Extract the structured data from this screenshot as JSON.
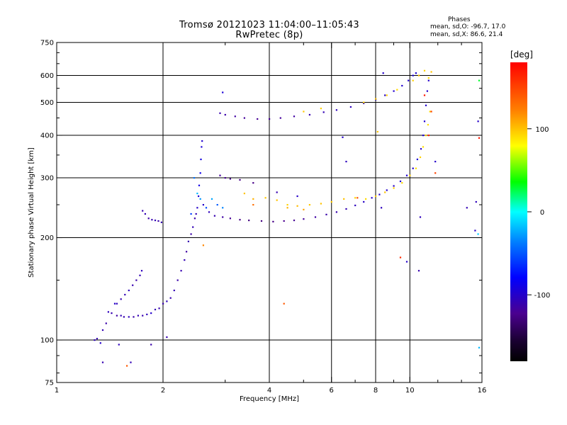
{
  "header": {
    "title_line_1": "Tromsø 20121023 11:04:00–11:05:43",
    "title_line_2": "RwPretec (8p)"
  },
  "phase_stats": {
    "heading": "Phases",
    "stat_o": "mean, sd,O: -96.7, 17.0",
    "stat_x": "mean, sd,X: 86.6, 21.4"
  },
  "colorbar": {
    "unit_label": "[deg]",
    "ticks": [
      {
        "value": 100,
        "label": "100"
      },
      {
        "value": 0,
        "label": "0"
      },
      {
        "value": -100,
        "label": "-100"
      }
    ],
    "range": [
      -180,
      180
    ],
    "colormap": "rainbow"
  },
  "chart_data": {
    "type": "scatter",
    "title": "Tromsø 20121023 11:04:00–11:05:43",
    "subtitle": "RwPretec (8p)",
    "xlabel": "Frequency [MHz]",
    "ylabel": "Stationary phase Virtual Height [km]",
    "xscale": "log",
    "yscale": "log",
    "xlim": [
      1,
      16
    ],
    "ylim": [
      75,
      750
    ],
    "xticks": [
      {
        "value": 1,
        "label": "1"
      },
      {
        "value": 2,
        "label": "2"
      },
      {
        "value": 4,
        "label": "4"
      },
      {
        "value": 6,
        "label": "6"
      },
      {
        "value": 8,
        "label": "8"
      },
      {
        "value": 10,
        "label": "10"
      },
      {
        "value": 16,
        "label": "16"
      }
    ],
    "yticks": [
      {
        "value": 75,
        "label": "75"
      },
      {
        "value": 100,
        "label": "100"
      },
      {
        "value": 200,
        "label": "200"
      },
      {
        "value": 300,
        "label": "300"
      },
      {
        "value": 400,
        "label": "400"
      },
      {
        "value": 500,
        "label": "500"
      },
      {
        "value": 600,
        "label": "600"
      },
      {
        "value": 750,
        "label": "750"
      }
    ],
    "grid_x": [
      2,
      4,
      6,
      8,
      10
    ],
    "grid_y": [
      100,
      200,
      300,
      400,
      500,
      600
    ],
    "minor_x": [
      3,
      5,
      7,
      9,
      12,
      14
    ],
    "minor_y": [
      80,
      90,
      150,
      250,
      350,
      450,
      550,
      650,
      700
    ],
    "grid": true,
    "color_scale": "phase [deg], rainbow, -180 to 180",
    "series": [
      {
        "points": [
          [
            1.28,
            100,
            -105
          ],
          [
            1.3,
            101,
            -110
          ],
          [
            1.33,
            98,
            -100
          ],
          [
            1.35,
            107,
            -108
          ],
          [
            1.38,
            112,
            -112
          ],
          [
            1.4,
            121,
            -105
          ],
          [
            1.43,
            120,
            -110
          ],
          [
            1.46,
            128,
            -100
          ],
          [
            1.48,
            118,
            -115
          ],
          [
            1.52,
            118,
            -108
          ],
          [
            1.55,
            117,
            -110
          ],
          [
            1.6,
            117,
            -105
          ],
          [
            1.65,
            117,
            -112
          ],
          [
            1.7,
            118,
            -108
          ],
          [
            1.75,
            118,
            -110
          ],
          [
            1.8,
            119,
            -105
          ],
          [
            1.85,
            120,
            -100
          ],
          [
            1.9,
            123,
            -108
          ],
          [
            1.95,
            124,
            -110
          ],
          [
            2.0,
            128,
            -112
          ],
          [
            2.05,
            130,
            -105
          ],
          [
            2.1,
            133,
            -110
          ],
          [
            2.15,
            140,
            -108
          ],
          [
            2.2,
            150,
            -112
          ],
          [
            2.25,
            160,
            -110
          ],
          [
            2.3,
            172,
            -108
          ],
          [
            2.33,
            182,
            -115
          ],
          [
            2.36,
            195,
            -110
          ],
          [
            2.4,
            205,
            -112
          ],
          [
            2.43,
            215,
            -108
          ],
          [
            2.46,
            228,
            -112
          ],
          [
            2.48,
            235,
            -110
          ],
          [
            2.5,
            245,
            -100
          ],
          [
            2.52,
            265,
            -95
          ],
          [
            2.53,
            285,
            -90
          ],
          [
            2.55,
            310,
            -88
          ],
          [
            2.56,
            340,
            -92
          ],
          [
            2.57,
            370,
            -95
          ],
          [
            2.58,
            385,
            -98
          ],
          [
            1.48,
            128,
            -105
          ],
          [
            1.52,
            132,
            -110
          ],
          [
            1.56,
            136,
            -108
          ],
          [
            1.6,
            140,
            -105
          ],
          [
            1.64,
            145,
            -110
          ],
          [
            1.68,
            150,
            -112
          ],
          [
            1.72,
            155,
            -108
          ],
          [
            1.74,
            160,
            -105
          ],
          [
            1.75,
            240,
            -110
          ],
          [
            1.78,
            235,
            -108
          ],
          [
            1.82,
            228,
            -112
          ],
          [
            1.86,
            226,
            -110
          ],
          [
            1.9,
            225,
            -108
          ],
          [
            1.94,
            224,
            -112
          ],
          [
            1.98,
            222,
            -110
          ],
          [
            2.6,
            250,
            -100
          ],
          [
            2.7,
            238,
            -105
          ],
          [
            2.8,
            232,
            -110
          ],
          [
            2.95,
            230,
            -115
          ],
          [
            3.1,
            228,
            -120
          ],
          [
            3.3,
            226,
            -125
          ],
          [
            3.5,
            225,
            -128
          ],
          [
            3.8,
            224,
            -128
          ],
          [
            4.1,
            223,
            -125
          ],
          [
            4.4,
            224,
            -122
          ],
          [
            4.7,
            225,
            -120
          ],
          [
            5.0,
            227,
            -118
          ],
          [
            5.4,
            230,
            -115
          ],
          [
            5.8,
            234,
            -112
          ],
          [
            6.2,
            238,
            -110
          ],
          [
            6.6,
            243,
            -108
          ],
          [
            7.0,
            249,
            -105
          ],
          [
            7.4,
            255,
            -102
          ],
          [
            7.8,
            262,
            -100
          ],
          [
            8.2,
            268,
            -100
          ],
          [
            8.6,
            276,
            -100
          ],
          [
            9.0,
            284,
            -100
          ],
          [
            9.4,
            293,
            -98
          ],
          [
            9.8,
            305,
            -98
          ],
          [
            10.2,
            320,
            -98
          ],
          [
            10.5,
            340,
            -98
          ],
          [
            10.75,
            365,
            -100
          ],
          [
            10.9,
            400,
            -100
          ],
          [
            11.0,
            440,
            -98
          ],
          [
            11.1,
            490,
            -98
          ],
          [
            11.2,
            540,
            -100
          ],
          [
            11.3,
            580,
            -100
          ],
          [
            2.9,
            305,
            -118
          ],
          [
            3.0,
            300,
            -120
          ],
          [
            3.1,
            298,
            -122
          ],
          [
            3.3,
            296,
            -125
          ],
          [
            3.6,
            290,
            -125
          ],
          [
            4.2,
            272,
            -110
          ],
          [
            4.8,
            265,
            -100
          ],
          [
            2.9,
            465,
            -110
          ],
          [
            3.0,
            460,
            -112
          ],
          [
            3.2,
            455,
            -115
          ],
          [
            3.4,
            450,
            -118
          ],
          [
            3.7,
            447,
            -120
          ],
          [
            4.0,
            447,
            -120
          ],
          [
            4.3,
            450,
            -118
          ],
          [
            4.7,
            455,
            -115
          ],
          [
            5.2,
            460,
            -110
          ],
          [
            5.7,
            468,
            -108
          ],
          [
            6.2,
            475,
            -105
          ],
          [
            6.8,
            485,
            -105
          ],
          [
            7.4,
            497,
            -102
          ],
          [
            8.0,
            510,
            -100
          ],
          [
            8.5,
            525,
            -100
          ],
          [
            9.0,
            540,
            -98
          ],
          [
            9.5,
            560,
            -98
          ],
          [
            9.9,
            580,
            -98
          ],
          [
            10.2,
            600,
            -95
          ],
          [
            10.4,
            610,
            -95
          ],
          [
            2.95,
            535,
            -95
          ],
          [
            6.45,
            395,
            -100
          ],
          [
            6.6,
            335,
            -105
          ],
          [
            8.4,
            610,
            -100
          ],
          [
            8.3,
            245,
            -105
          ],
          [
            9.8,
            170,
            -100
          ],
          [
            10.6,
            160,
            -110
          ],
          [
            10.7,
            230,
            -105
          ],
          [
            11.8,
            335,
            -100
          ],
          [
            15.6,
            440,
            -100
          ],
          [
            15.4,
            255,
            -105
          ],
          [
            15.3,
            210,
            -100
          ],
          [
            14.5,
            245,
            -108
          ],
          [
            1.35,
            86,
            -110
          ],
          [
            1.5,
            97,
            -105
          ],
          [
            1.62,
            86,
            -108
          ],
          [
            1.85,
            97,
            -112
          ],
          [
            2.05,
            102,
            -110
          ]
        ]
      },
      {
        "points": [
          [
            2.4,
            235,
            -60
          ],
          [
            2.45,
            300,
            -40
          ],
          [
            2.5,
            270,
            -20
          ],
          [
            2.55,
            260,
            -30
          ],
          [
            2.65,
            245,
            -55
          ],
          [
            2.75,
            260,
            -25
          ],
          [
            2.85,
            250,
            -50
          ],
          [
            2.95,
            245,
            -35
          ]
        ]
      },
      {
        "points": [
          [
            3.4,
            270,
            100
          ],
          [
            3.6,
            260,
            105
          ],
          [
            3.9,
            262,
            98
          ],
          [
            4.2,
            258,
            100
          ],
          [
            4.5,
            250,
            95
          ],
          [
            4.8,
            248,
            102
          ],
          [
            5.2,
            250,
            98
          ],
          [
            5.6,
            252,
            100
          ],
          [
            6.0,
            255,
            97
          ],
          [
            6.5,
            260,
            100
          ],
          [
            7.0,
            262,
            95
          ],
          [
            7.5,
            260,
            92
          ],
          [
            8.0,
            265,
            98
          ],
          [
            8.5,
            272,
            100
          ],
          [
            9.0,
            280,
            96
          ],
          [
            9.5,
            290,
            92
          ],
          [
            10.0,
            305,
            95
          ],
          [
            10.4,
            320,
            90
          ],
          [
            10.7,
            345,
            95
          ],
          [
            10.9,
            370,
            92
          ],
          [
            11.1,
            400,
            95
          ],
          [
            11.25,
            430,
            90
          ],
          [
            11.4,
            470,
            92
          ],
          [
            7.4,
            500,
            95
          ],
          [
            8.0,
            512,
            98
          ],
          [
            8.6,
            525,
            95
          ],
          [
            9.2,
            545,
            92
          ],
          [
            10.2,
            580,
            95
          ],
          [
            10.6,
            600,
            98
          ],
          [
            11.0,
            620,
            95
          ],
          [
            11.3,
            590,
            92
          ],
          [
            11.5,
            615,
            100
          ],
          [
            5.0,
            470,
            98
          ],
          [
            5.6,
            480,
            95
          ],
          [
            8.1,
            410,
            100
          ],
          [
            4.5,
            245,
            105
          ],
          [
            5.0,
            242,
            110
          ]
        ]
      },
      {
        "points": [
          [
            1.58,
            84,
            140
          ],
          [
            2.6,
            190,
            120
          ],
          [
            3.6,
            250,
            130
          ],
          [
            4.4,
            128,
            140
          ],
          [
            7.1,
            262,
            145
          ],
          [
            9.4,
            175,
            160
          ],
          [
            11.8,
            310,
            150
          ],
          [
            15.7,
            393,
            170
          ],
          [
            11.0,
            525,
            170
          ],
          [
            11.3,
            400,
            165
          ],
          [
            11.5,
            470,
            150
          ]
        ]
      },
      {
        "points": [
          [
            15.7,
            95,
            -20
          ],
          [
            15.6,
            205,
            -15
          ],
          [
            15.7,
            580,
            30
          ]
        ]
      }
    ]
  }
}
